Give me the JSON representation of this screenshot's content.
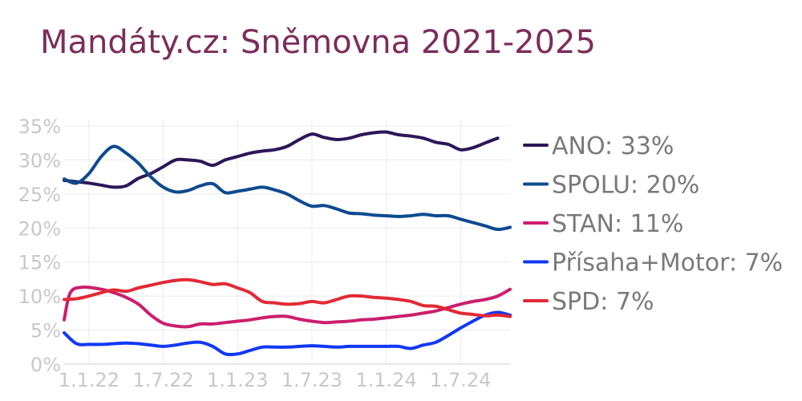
{
  "chart_data": {
    "type": "line",
    "title": "Mandáty.cz: Sněmovna 2021-2025",
    "x_ticks": [
      {
        "x": 2,
        "label": "1.1.22"
      },
      {
        "x": 8,
        "label": "1.7.22"
      },
      {
        "x": 14,
        "label": "1.1.23"
      },
      {
        "x": 20,
        "label": "1.7.23"
      },
      {
        "x": 26,
        "label": "1.1.24"
      },
      {
        "x": 32,
        "label": "1.7.24"
      }
    ],
    "xlim": [
      0,
      36
    ],
    "y_ticks": [
      0,
      5,
      10,
      15,
      20,
      25,
      30,
      35
    ],
    "y_tick_suffix": "%",
    "ylim": [
      0,
      35
    ],
    "grid": true,
    "legend_position": "right",
    "series": [
      {
        "name": "ANO",
        "legend": "ANO: 33%",
        "color": "#2d1658",
        "points": [
          [
            0,
            27
          ],
          [
            1,
            26.8
          ],
          [
            2,
            26.6
          ],
          [
            3,
            26.3
          ],
          [
            4,
            26.0
          ],
          [
            5,
            26.2
          ],
          [
            6,
            27.3
          ],
          [
            7,
            28.0
          ],
          [
            8,
            29.0
          ],
          [
            9,
            30.0
          ],
          [
            10,
            30.0
          ],
          [
            11,
            29.8
          ],
          [
            12,
            29.2
          ],
          [
            13,
            30.0
          ],
          [
            14,
            30.5
          ],
          [
            15,
            31.0
          ],
          [
            16,
            31.3
          ],
          [
            17,
            31.5
          ],
          [
            18,
            32.0
          ],
          [
            19,
            33.0
          ],
          [
            20,
            33.8
          ],
          [
            21,
            33.3
          ],
          [
            22,
            33.0
          ],
          [
            23,
            33.2
          ],
          [
            24,
            33.7
          ],
          [
            25,
            34.0
          ],
          [
            26,
            34.1
          ],
          [
            27,
            33.7
          ],
          [
            28,
            33.5
          ],
          [
            29,
            33.2
          ],
          [
            30,
            32.6
          ],
          [
            31,
            32.3
          ],
          [
            32,
            31.5
          ],
          [
            33,
            31.8
          ],
          [
            34,
            32.5
          ],
          [
            35,
            33.2
          ]
        ]
      },
      {
        "name": "SPOLU",
        "legend": "SPOLU: 20%",
        "color": "#0e4a90",
        "points": [
          [
            0,
            27.2
          ],
          [
            1,
            26.6
          ],
          [
            2,
            28.0
          ],
          [
            3,
            30.5
          ],
          [
            4,
            32.0
          ],
          [
            5,
            31.0
          ],
          [
            6,
            29.5
          ],
          [
            7,
            27.5
          ],
          [
            8,
            26.0
          ],
          [
            9,
            25.3
          ],
          [
            10,
            25.5
          ],
          [
            11,
            26.2
          ],
          [
            12,
            26.5
          ],
          [
            13,
            25.2
          ],
          [
            14,
            25.4
          ],
          [
            15,
            25.7
          ],
          [
            16,
            26.0
          ],
          [
            17,
            25.6
          ],
          [
            18,
            25.0
          ],
          [
            19,
            24.0
          ],
          [
            20,
            23.2
          ],
          [
            21,
            23.3
          ],
          [
            22,
            22.8
          ],
          [
            23,
            22.2
          ],
          [
            24,
            22.1
          ],
          [
            25,
            21.9
          ],
          [
            26,
            21.8
          ],
          [
            27,
            21.7
          ],
          [
            28,
            21.8
          ],
          [
            29,
            22.0
          ],
          [
            30,
            21.8
          ],
          [
            31,
            21.8
          ],
          [
            32,
            21.3
          ],
          [
            33,
            20.8
          ],
          [
            34,
            20.3
          ],
          [
            35,
            19.8
          ],
          [
            36,
            20.1
          ]
        ]
      },
      {
        "name": "STAN",
        "legend": "STAN: 11%",
        "color": "#cc1e6e",
        "points": [
          [
            0,
            6.5
          ],
          [
            0.5,
            10.5
          ],
          [
            1.5,
            11.3
          ],
          [
            3,
            11.0
          ],
          [
            4,
            10.5
          ],
          [
            5,
            9.8
          ],
          [
            6,
            8.8
          ],
          [
            7,
            7.2
          ],
          [
            8,
            6.0
          ],
          [
            9,
            5.6
          ],
          [
            10,
            5.5
          ],
          [
            11,
            5.9
          ],
          [
            12,
            5.9
          ],
          [
            13,
            6.1
          ],
          [
            14,
            6.3
          ],
          [
            15,
            6.5
          ],
          [
            16,
            6.8
          ],
          [
            17,
            7.0
          ],
          [
            18,
            7.0
          ],
          [
            19,
            6.6
          ],
          [
            20,
            6.3
          ],
          [
            21,
            6.1
          ],
          [
            22,
            6.2
          ],
          [
            23,
            6.3
          ],
          [
            24,
            6.5
          ],
          [
            25,
            6.6
          ],
          [
            26,
            6.8
          ],
          [
            27,
            7.0
          ],
          [
            28,
            7.2
          ],
          [
            29,
            7.5
          ],
          [
            30,
            7.8
          ],
          [
            31,
            8.3
          ],
          [
            32,
            8.8
          ],
          [
            33,
            9.2
          ],
          [
            34,
            9.5
          ],
          [
            35,
            10.0
          ],
          [
            36,
            11.0
          ]
        ]
      },
      {
        "name": "Přísaha+Motor",
        "legend": "Přísaha+Motor: 7%",
        "color": "#1238f5",
        "points": [
          [
            0,
            4.6
          ],
          [
            1,
            3.0
          ],
          [
            2,
            2.9
          ],
          [
            3,
            2.9
          ],
          [
            4,
            3.0
          ],
          [
            5,
            3.1
          ],
          [
            6,
            3.0
          ],
          [
            7,
            2.8
          ],
          [
            8,
            2.6
          ],
          [
            9,
            2.8
          ],
          [
            10,
            3.1
          ],
          [
            11,
            3.2
          ],
          [
            12,
            2.6
          ],
          [
            13,
            1.5
          ],
          [
            14,
            1.5
          ],
          [
            15,
            2.0
          ],
          [
            16,
            2.5
          ],
          [
            17,
            2.5
          ],
          [
            18,
            2.5
          ],
          [
            19,
            2.6
          ],
          [
            20,
            2.7
          ],
          [
            21,
            2.6
          ],
          [
            22,
            2.5
          ],
          [
            23,
            2.6
          ],
          [
            24,
            2.6
          ],
          [
            25,
            2.6
          ],
          [
            26,
            2.6
          ],
          [
            27,
            2.6
          ],
          [
            28,
            2.3
          ],
          [
            29,
            2.8
          ],
          [
            30,
            3.2
          ],
          [
            31,
            4.2
          ],
          [
            32,
            5.3
          ],
          [
            33,
            6.3
          ],
          [
            34,
            7.2
          ],
          [
            35,
            7.6
          ],
          [
            36,
            7.2
          ]
        ]
      },
      {
        "name": "SPD",
        "legend": "SPD: 7%",
        "color": "#e22a35",
        "points": [
          [
            0,
            9.5
          ],
          [
            1,
            9.6
          ],
          [
            2,
            10.0
          ],
          [
            3,
            10.5
          ],
          [
            4,
            10.9
          ],
          [
            5,
            10.7
          ],
          [
            6,
            11.2
          ],
          [
            7,
            11.6
          ],
          [
            8,
            12.0
          ],
          [
            9,
            12.3
          ],
          [
            10,
            12.4
          ],
          [
            11,
            12.1
          ],
          [
            12,
            11.7
          ],
          [
            13,
            11.8
          ],
          [
            14,
            11.2
          ],
          [
            15,
            10.5
          ],
          [
            16,
            9.2
          ],
          [
            17,
            9.0
          ],
          [
            18,
            8.8
          ],
          [
            19,
            8.9
          ],
          [
            20,
            9.2
          ],
          [
            21,
            9.0
          ],
          [
            22,
            9.5
          ],
          [
            23,
            10.0
          ],
          [
            24,
            10.0
          ],
          [
            25,
            9.8
          ],
          [
            26,
            9.7
          ],
          [
            27,
            9.5
          ],
          [
            28,
            9.2
          ],
          [
            29,
            8.6
          ],
          [
            30,
            8.5
          ],
          [
            31,
            8.0
          ],
          [
            32,
            7.5
          ],
          [
            33,
            7.3
          ],
          [
            34,
            7.1
          ],
          [
            35,
            7.2
          ],
          [
            36,
            7.0
          ]
        ]
      }
    ]
  }
}
